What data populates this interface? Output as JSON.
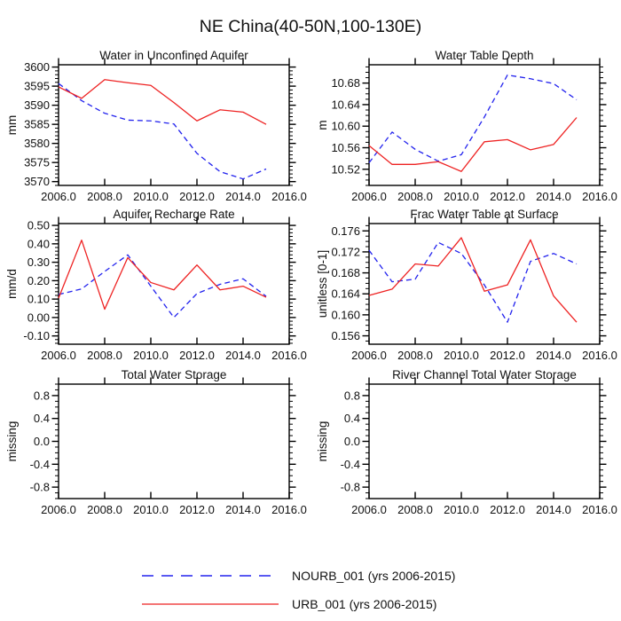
{
  "title": "NE China(40-50N,100-130E)",
  "colors": {
    "nourb": "#2222ee",
    "urb": "#ee2222",
    "axis": "#000000",
    "background": "#ffffff"
  },
  "legend": {
    "items": [
      {
        "label": "NOURB_001 (yrs 2006-2015)",
        "color": "#2222ee",
        "style": "dashed"
      },
      {
        "label": "URB_001 (yrs 2006-2015)",
        "color": "#ee2222",
        "style": "solid"
      }
    ]
  },
  "chart_data": [
    {
      "type": "line",
      "title": "Water in Unconfined Aquifer",
      "ylabel": "mm",
      "x": [
        2006,
        2007,
        2008,
        2009,
        2010,
        2011,
        2012,
        2013,
        2014,
        2015
      ],
      "xlim": [
        2006,
        2016
      ],
      "xticks": [
        2006,
        2008,
        2010,
        2012,
        2014,
        2016
      ],
      "xtick_labels": [
        "2006.0",
        "2008.0",
        "2010.0",
        "2012.0",
        "2014.0",
        "2016.0"
      ],
      "ylim": [
        3569.0,
        3600.6
      ],
      "yticks": [
        3570,
        3575,
        3580,
        3585,
        3590,
        3595,
        3600
      ],
      "ytick_labels": [
        "3570",
        "3575",
        "3580",
        "3585",
        "3590",
        "3595",
        "3600"
      ],
      "yminor_step": 1,
      "series": [
        {
          "name": "NOURB_001",
          "color": "#2222ee",
          "dashed": true,
          "values": [
            3595.7,
            3591.2,
            3587.9,
            3586.1,
            3585.9,
            3585.1,
            3577.4,
            3572.6,
            3570.7,
            3573.3
          ]
        },
        {
          "name": "URB_001",
          "color": "#ee2222",
          "dashed": false,
          "values": [
            3594.8,
            3591.8,
            3596.7,
            3595.9,
            3595.2,
            3590.7,
            3585.9,
            3588.8,
            3588.2,
            3585.0
          ]
        }
      ]
    },
    {
      "type": "line",
      "title": "Water Table Depth",
      "ylabel": "m",
      "x": [
        2006,
        2007,
        2008,
        2009,
        2010,
        2011,
        2012,
        2013,
        2014,
        2015
      ],
      "xlim": [
        2006,
        2016
      ],
      "xticks": [
        2006,
        2008,
        2010,
        2012,
        2014,
        2016
      ],
      "xtick_labels": [
        "2006.0",
        "2008.0",
        "2010.0",
        "2012.0",
        "2014.0",
        "2016.0"
      ],
      "ylim": [
        10.49,
        10.714
      ],
      "yticks": [
        10.52,
        10.56,
        10.6,
        10.64,
        10.68
      ],
      "ytick_labels": [
        "10.52",
        "10.56",
        "10.60",
        "10.64",
        "10.68"
      ],
      "yminor_step": 0.01,
      "series": [
        {
          "name": "NOURB_001",
          "color": "#2222ee",
          "dashed": true,
          "values": [
            10.532,
            10.589,
            10.557,
            10.535,
            10.547,
            10.617,
            10.695,
            10.688,
            10.679,
            10.649
          ]
        },
        {
          "name": "URB_001",
          "color": "#ee2222",
          "dashed": false,
          "values": [
            10.564,
            10.529,
            10.529,
            10.534,
            10.516,
            10.571,
            10.575,
            10.556,
            10.566,
            10.616
          ]
        }
      ]
    },
    {
      "type": "line",
      "title": "Aquifer Recharge Rate",
      "ylabel": "mm/d",
      "x": [
        2006,
        2007,
        2008,
        2009,
        2010,
        2011,
        2012,
        2013,
        2014,
        2015
      ],
      "xlim": [
        2006,
        2016
      ],
      "xticks": [
        2006,
        2008,
        2010,
        2012,
        2014,
        2016
      ],
      "xtick_labels": [
        "2006.0",
        "2008.0",
        "2010.0",
        "2012.0",
        "2014.0",
        "2016.0"
      ],
      "ylim": [
        -0.145,
        0.51
      ],
      "yticks": [
        -0.1,
        0.0,
        0.1,
        0.2,
        0.3,
        0.4,
        0.5
      ],
      "ytick_labels": [
        "-0.10",
        "0.00",
        "0.10",
        "0.20",
        "0.30",
        "0.40",
        "0.50"
      ],
      "yminor_step": 0.02,
      "series": [
        {
          "name": "NOURB_001",
          "color": "#2222ee",
          "dashed": true,
          "values": [
            0.125,
            0.155,
            0.25,
            0.34,
            0.17,
            0.0,
            0.13,
            0.18,
            0.21,
            0.115
          ]
        },
        {
          "name": "URB_001",
          "color": "#ee2222",
          "dashed": false,
          "values": [
            0.105,
            0.42,
            0.045,
            0.325,
            0.19,
            0.15,
            0.285,
            0.15,
            0.17,
            0.11
          ]
        }
      ]
    },
    {
      "type": "line",
      "title": "Frac Water Table at Surface",
      "ylabel": "unitless [0-1]",
      "x": [
        2006,
        2007,
        2008,
        2009,
        2010,
        2011,
        2012,
        2013,
        2014,
        2015
      ],
      "xlim": [
        2006,
        2016
      ],
      "xticks": [
        2006,
        2008,
        2010,
        2012,
        2014,
        2016
      ],
      "xtick_labels": [
        "2006.0",
        "2008.0",
        "2010.0",
        "2012.0",
        "2014.0",
        "2016.0"
      ],
      "ylim": [
        0.1544,
        0.1774
      ],
      "yticks": [
        0.156,
        0.16,
        0.164,
        0.168,
        0.172,
        0.176
      ],
      "ytick_labels": [
        "0.156",
        "0.160",
        "0.164",
        "0.168",
        "0.172",
        "0.176"
      ],
      "yminor_step": 0.001,
      "series": [
        {
          "name": "NOURB_001",
          "color": "#2222ee",
          "dashed": true,
          "values": [
            0.1723,
            0.1663,
            0.1668,
            0.1738,
            0.1717,
            0.1657,
            0.1586,
            0.1702,
            0.1717,
            0.1697
          ]
        },
        {
          "name": "URB_001",
          "color": "#ee2222",
          "dashed": false,
          "values": [
            0.1637,
            0.1649,
            0.1697,
            0.1693,
            0.1747,
            0.1645,
            0.1657,
            0.1743,
            0.1636,
            0.1586
          ]
        }
      ]
    },
    {
      "type": "line",
      "title": "Total Water Storage",
      "ylabel": "missing",
      "x": [],
      "xlim": [
        2006,
        2016
      ],
      "xticks": [
        2006,
        2008,
        2010,
        2012,
        2014,
        2016
      ],
      "xtick_labels": [
        "2006.0",
        "2008.0",
        "2010.0",
        "2012.0",
        "2014.0",
        "2016.0"
      ],
      "ylim": [
        -1.0,
        1.0
      ],
      "yticks": [
        -0.8,
        -0.4,
        0.0,
        0.4,
        0.8
      ],
      "ytick_labels": [
        "-0.8",
        "-0.4",
        "0.0",
        "0.4",
        "0.8"
      ],
      "yminor_step": 0.1,
      "series": []
    },
    {
      "type": "line",
      "title": "River Channel Total Water Storage",
      "ylabel": "missing",
      "x": [],
      "xlim": [
        2006,
        2016
      ],
      "xticks": [
        2006,
        2008,
        2010,
        2012,
        2014,
        2016
      ],
      "xtick_labels": [
        "2006.0",
        "2008.0",
        "2010.0",
        "2012.0",
        "2014.0",
        "2016.0"
      ],
      "ylim": [
        -1.0,
        1.0
      ],
      "yticks": [
        -0.8,
        -0.4,
        0.0,
        0.4,
        0.8
      ],
      "ytick_labels": [
        "-0.8",
        "-0.4",
        "0.0",
        "0.4",
        "0.8"
      ],
      "yminor_step": 0.1,
      "series": []
    }
  ]
}
